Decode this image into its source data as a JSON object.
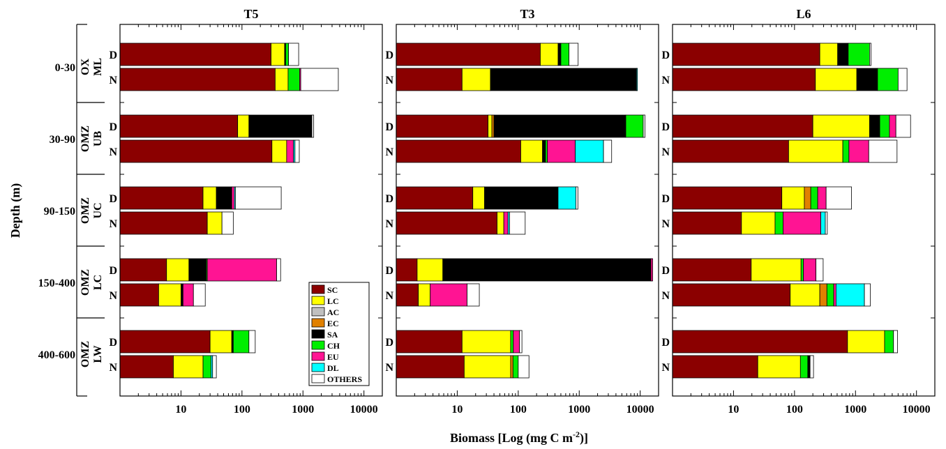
{
  "chart_data": {
    "type": "bar",
    "orientation": "horizontal",
    "stacked": true,
    "xscale": "log",
    "xlabel": "Biomass [Log (mg C m",
    "xlabel_sup": "-2",
    "xlabel_end": ")]",
    "ylabel": "Depth (m)",
    "xlim": [
      1,
      20000
    ],
    "xticks": [
      10,
      100,
      1000,
      10000
    ],
    "xtick_labels": [
      "10",
      "100",
      "1000",
      "10000"
    ],
    "panels": [
      "T5",
      "T3",
      "L6"
    ],
    "layers": [
      {
        "depth": "0-30",
        "zone": [
          "OX",
          "ML"
        ]
      },
      {
        "depth": "30-90",
        "zone": [
          "OMZ",
          "UB"
        ]
      },
      {
        "depth": "90-150",
        "zone": [
          "OMZ",
          "UC"
        ]
      },
      {
        "depth": "150-400",
        "zone": [
          "OMZ",
          "LC"
        ]
      },
      {
        "depth": "400-600",
        "zone": [
          "OMZ",
          "LW"
        ]
      }
    ],
    "periods": [
      "D",
      "N"
    ],
    "groups": [
      {
        "name": "SC",
        "color": "#8B0000"
      },
      {
        "name": "LC",
        "color": "#FFFF00"
      },
      {
        "name": "AC",
        "color": "#C0C0C0"
      },
      {
        "name": "EC",
        "color": "#E08000"
      },
      {
        "name": "SA",
        "color": "#000000"
      },
      {
        "name": "CH",
        "color": "#00EE00"
      },
      {
        "name": "EU",
        "color": "#FF1493"
      },
      {
        "name": "DL",
        "color": "#00FFFF"
      },
      {
        "name": "OTHERS",
        "color": "#FFFFFF"
      }
    ],
    "legend_position": "bottom-right of panel T5",
    "note": "Values are cumulative biomass at the right edge of each stacked segment (mg C m-2), read from the log axis.",
    "bars": {
      "T5": [
        [
          [
            [
              "SC",
              300
            ],
            [
              "LC",
              500
            ],
            [
              "SA",
              520
            ],
            [
              "CH",
              580
            ],
            [
              "OTHERS",
              850
            ]
          ],
          [
            [
              "SC",
              350
            ],
            [
              "LC",
              570
            ],
            [
              "CH",
              880
            ],
            [
              "EU",
              920
            ],
            [
              "OTHERS",
              3800
            ]
          ]
        ],
        [
          [
            [
              "SC",
              85
            ],
            [
              "LC",
              130
            ],
            [
              "SA",
              1400
            ],
            [
              "OTHERS",
              1500
            ]
          ],
          [
            [
              "SC",
              310
            ],
            [
              "LC",
              540
            ],
            [
              "EU",
              700
            ],
            [
              "DL",
              740
            ],
            [
              "OTHERS",
              870
            ]
          ]
        ],
        [
          [
            [
              "SC",
              23
            ],
            [
              "LC",
              38
            ],
            [
              "SA",
              68
            ],
            [
              "EU",
              75
            ],
            [
              "DL",
              78
            ],
            [
              "OTHERS",
              440
            ]
          ],
          [
            [
              "SC",
              27
            ],
            [
              "LC",
              47
            ],
            [
              "OTHERS",
              72
            ]
          ]
        ],
        [
          [
            [
              "SC",
              5.8
            ],
            [
              "LC",
              13.5
            ],
            [
              "SA",
              26
            ],
            [
              "CH",
              27
            ],
            [
              "EU",
              370
            ],
            [
              "OTHERS",
              430
            ]
          ],
          [
            [
              "SC",
              4.3
            ],
            [
              "LC",
              10
            ],
            [
              "SA",
              10.8
            ],
            [
              "EU",
              16
            ],
            [
              "OTHERS",
              25
            ]
          ]
        ],
        [
          [
            [
              "SC",
              30
            ],
            [
              "LC",
              68
            ],
            [
              "SA",
              72
            ],
            [
              "CH",
              130
            ],
            [
              "OTHERS",
              165
            ]
          ],
          [
            [
              "SC",
              7.5
            ],
            [
              "LC",
              23
            ],
            [
              "CH",
              31
            ],
            [
              "DL",
              33
            ],
            [
              "OTHERS",
              38
            ]
          ]
        ]
      ],
      "T3": [
        [
          [
            [
              "SC",
              230
            ],
            [
              "LC",
              450
            ],
            [
              "SA",
              500
            ],
            [
              "CH",
              680
            ],
            [
              "OTHERS",
              960
            ]
          ],
          [
            [
              "SC",
              12
            ],
            [
              "LC",
              35
            ],
            [
              "SA",
              8700
            ],
            [
              "DL",
              9000
            ]
          ]
        ],
        [
          [
            [
              "SC",
              32
            ],
            [
              "LC",
              37
            ],
            [
              "EC",
              40
            ],
            [
              "SA",
              5800
            ],
            [
              "CH",
              11200
            ],
            [
              "OTHERS",
              12000
            ]
          ],
          [
            [
              "SC",
              110
            ],
            [
              "LC",
              250
            ],
            [
              "SA",
              280
            ],
            [
              "CH",
              300
            ],
            [
              "EU",
              860
            ],
            [
              "DL",
              2500
            ],
            [
              "OTHERS",
              3400
            ]
          ]
        ],
        [
          [
            [
              "SC",
              18
            ],
            [
              "LC",
              28
            ],
            [
              "SA",
              450
            ],
            [
              "DL",
              880
            ],
            [
              "OTHERS",
              950
            ]
          ],
          [
            [
              "SC",
              45
            ],
            [
              "LC",
              58
            ],
            [
              "EU",
              68
            ],
            [
              "DL",
              72
            ],
            [
              "OTHERS",
              130
            ]
          ]
        ],
        [
          [
            [
              "SC",
              2.2
            ],
            [
              "LC",
              5.8
            ],
            [
              "SA",
              15000
            ],
            [
              "EU",
              16000
            ]
          ],
          [
            [
              "SC",
              2.3
            ],
            [
              "LC",
              3.6
            ],
            [
              "EU",
              14.5
            ],
            [
              "OTHERS",
              23
            ]
          ]
        ],
        [
          [
            [
              "SC",
              12
            ],
            [
              "LC",
              75
            ],
            [
              "CH",
              83
            ],
            [
              "EU",
              105
            ],
            [
              "OTHERS",
              115
            ]
          ],
          [
            [
              "SC",
              13
            ],
            [
              "LC",
              75
            ],
            [
              "EC",
              82
            ],
            [
              "CH",
              100
            ],
            [
              "OTHERS",
              150
            ]
          ]
        ]
      ],
      "L6": [
        [
          [
            [
              "SC",
              260
            ],
            [
              "LC",
              510
            ],
            [
              "SA",
              760
            ],
            [
              "CH",
              1700
            ],
            [
              "OTHERS",
              1800
            ]
          ],
          [
            [
              "SC",
              220
            ],
            [
              "LC",
              1050
            ],
            [
              "SA",
              2300
            ],
            [
              "CH",
              5000
            ],
            [
              "OTHERS",
              7000
            ]
          ]
        ],
        [
          [
            [
              "SC",
              200
            ],
            [
              "LC",
              1700
            ],
            [
              "SA",
              2500
            ],
            [
              "CH",
              3600
            ],
            [
              "EU",
              4600
            ],
            [
              "OTHERS",
              8000
            ]
          ],
          [
            [
              "SC",
              80
            ],
            [
              "LC",
              620
            ],
            [
              "CH",
              780
            ],
            [
              "EU",
              1650
            ],
            [
              "OTHERS",
              4800
            ]
          ]
        ],
        [
          [
            [
              "SC",
              62
            ],
            [
              "LC",
              145
            ],
            [
              "EC",
              185
            ],
            [
              "CH",
              240
            ],
            [
              "EU",
              330
            ],
            [
              "OTHERS",
              860
            ]
          ],
          [
            [
              "SC",
              13.5
            ],
            [
              "LC",
              48
            ],
            [
              "CH",
              65
            ],
            [
              "EU",
              270
            ],
            [
              "DL",
              320
            ],
            [
              "OTHERS",
              345
            ]
          ]
        ],
        [
          [
            [
              "SC",
              19.5
            ],
            [
              "LC",
              128
            ],
            [
              "CH",
              140
            ],
            [
              "EU",
              225
            ],
            [
              "OTHERS",
              295
            ]
          ],
          [
            [
              "SC",
              85
            ],
            [
              "LC",
              260
            ],
            [
              "EC",
              340
            ],
            [
              "CH",
              440
            ],
            [
              "EU",
              480
            ],
            [
              "DL",
              1400
            ],
            [
              "OTHERS",
              1750
            ]
          ]
        ],
        [
          [
            [
              "SC",
              740
            ],
            [
              "LC",
              3000
            ],
            [
              "CH",
              4200
            ],
            [
              "OTHERS",
              4900
            ]
          ],
          [
            [
              "SC",
              25
            ],
            [
              "LC",
              125
            ],
            [
              "CH",
              165
            ],
            [
              "SA",
              180
            ],
            [
              "OTHERS",
              205
            ]
          ]
        ]
      ]
    }
  }
}
